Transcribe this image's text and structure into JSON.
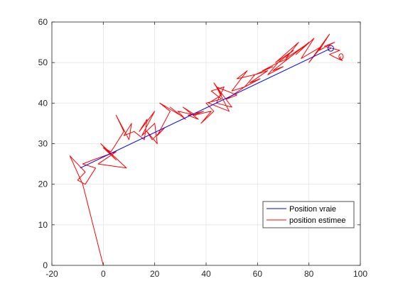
{
  "chart_data": {
    "type": "line",
    "title": "",
    "xlabel": "",
    "ylabel": "",
    "xlim": [
      -20,
      100
    ],
    "ylim": [
      0,
      60
    ],
    "x_ticks": [
      -20,
      0,
      20,
      40,
      60,
      80,
      100
    ],
    "y_ticks": [
      0,
      10,
      20,
      30,
      40,
      50,
      60
    ],
    "x_tick_labels": [
      "-20",
      "0",
      "20",
      "40",
      "60",
      "80",
      "100"
    ],
    "y_tick_labels": [
      "0",
      "10",
      "20",
      "30",
      "40",
      "50",
      "60"
    ],
    "grid": true,
    "legend_position": "bottom-right",
    "series": [
      {
        "name": "Position vraie",
        "color": "#0000ff",
        "x": [
          -9,
          88.5
        ],
        "y": [
          24,
          53.5
        ],
        "end_marker": "circle"
      },
      {
        "name": "position estimee",
        "color": "#ff0000",
        "x": [
          0,
          -8,
          -13,
          -7,
          -10,
          -7,
          -3,
          -8,
          -4,
          5,
          -2,
          9,
          -1,
          5,
          0,
          3,
          8,
          5,
          10,
          11,
          8,
          12,
          16,
          17,
          14,
          20,
          15,
          20,
          21,
          17,
          19,
          24,
          21,
          26,
          22,
          30,
          26,
          32,
          29,
          36,
          31,
          37,
          33,
          39,
          35,
          42,
          38,
          43,
          40,
          46,
          42,
          47,
          44,
          50,
          43,
          46,
          41,
          49,
          44,
          52,
          48,
          55,
          50,
          56,
          52,
          59,
          55,
          61,
          57,
          64,
          59,
          66,
          62,
          68,
          64,
          70,
          66,
          72,
          68,
          74,
          67,
          76,
          71,
          78,
          70,
          80,
          75,
          82,
          77,
          85,
          80,
          88,
          84,
          90,
          86,
          92,
          88,
          91,
          93,
          92,
          92.5
        ],
        "y": [
          0,
          20,
          27,
          23,
          21,
          20,
          24,
          25,
          26,
          28,
          25,
          24,
          30,
          26,
          29,
          28,
          33,
          37,
          31,
          35,
          32,
          33,
          31,
          36,
          33,
          38,
          32,
          35,
          30,
          33,
          31,
          34,
          32,
          38,
          40,
          37,
          39,
          36,
          38,
          37,
          39,
          36,
          37,
          38,
          37,
          38,
          35,
          38,
          40,
          41,
          43,
          44,
          40,
          39,
          45,
          42,
          40,
          38,
          44,
          42,
          41,
          44,
          43,
          48,
          46,
          47,
          44,
          46,
          45,
          48,
          47,
          49,
          48,
          50,
          47,
          49,
          48,
          51,
          50,
          53,
          50,
          55,
          51,
          54,
          50,
          55,
          52,
          56,
          51,
          54,
          50,
          57,
          53,
          55,
          54,
          53,
          52,
          51,
          50.5,
          51,
          51.5
        ]
      }
    ]
  }
}
